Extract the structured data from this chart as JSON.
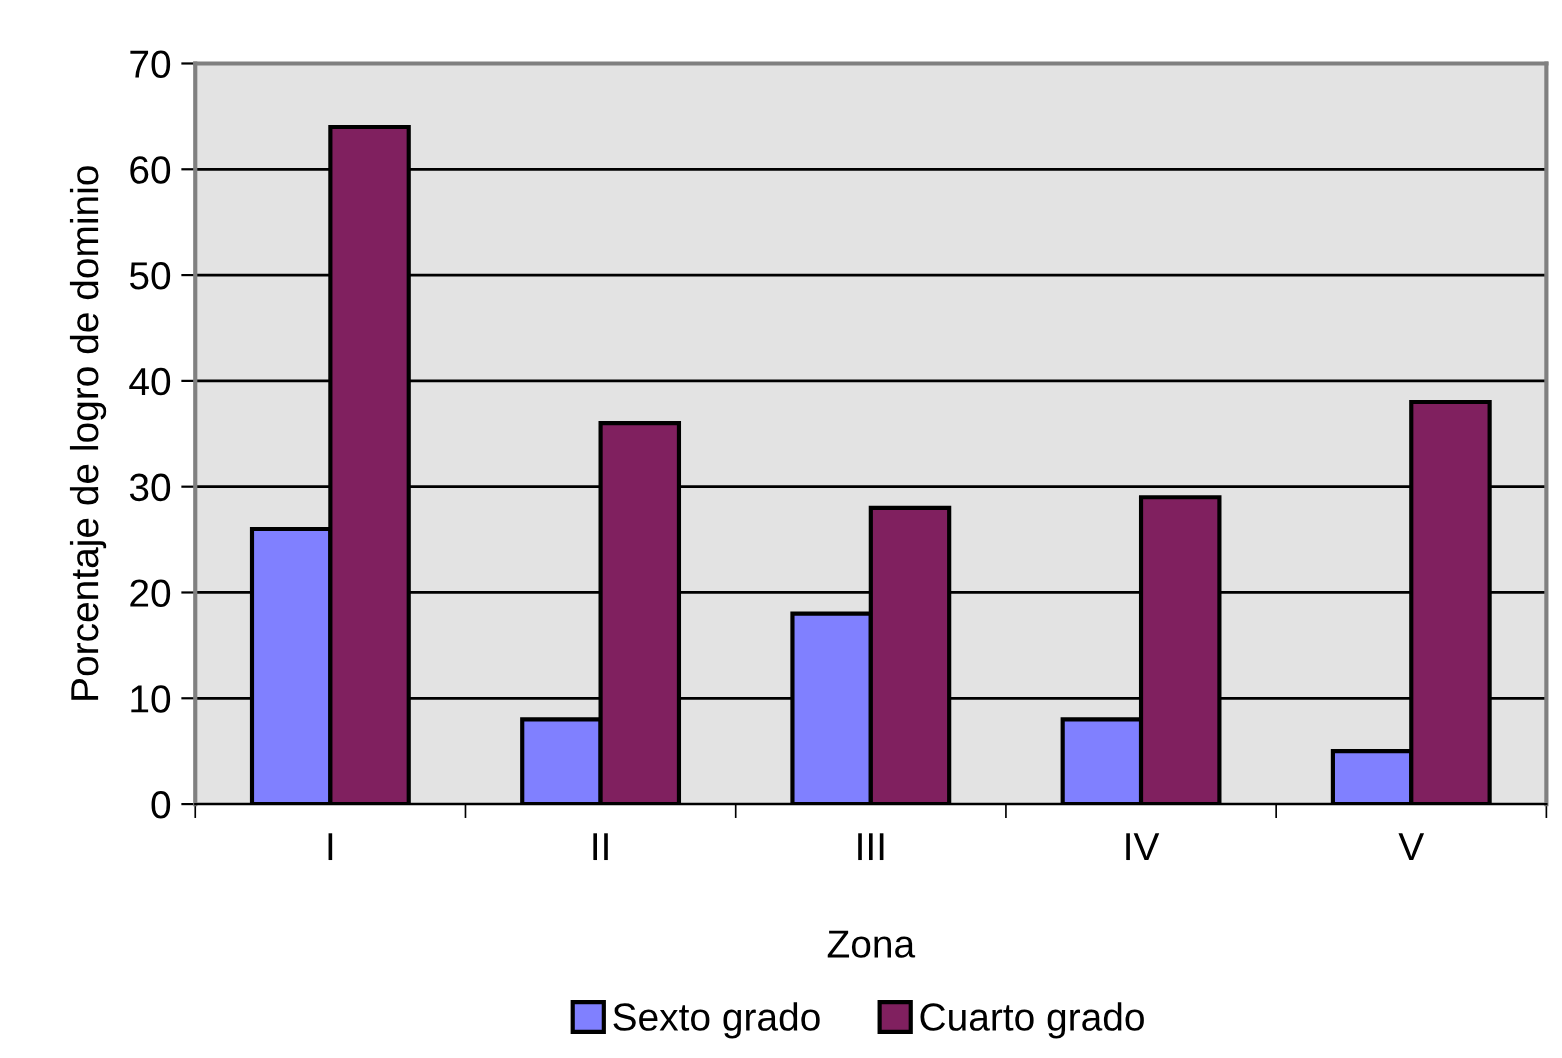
{
  "chart_data": {
    "type": "bar",
    "xlabel": "Zona",
    "ylabel": "Porcentaje de logro de dominio",
    "categories": [
      "I",
      "II",
      "III",
      "IV",
      "V"
    ],
    "series": [
      {
        "name": "Sexto grado",
        "color": "#8080ff",
        "values": [
          26,
          8,
          18,
          8,
          5
        ]
      },
      {
        "name": "Cuarto grado",
        "color": "#80205f",
        "values": [
          64,
          36,
          28,
          29,
          38
        ]
      }
    ],
    "ylim": [
      0,
      70
    ],
    "yticks": [
      0,
      10,
      20,
      30,
      40,
      50,
      60,
      70
    ],
    "grid": "y",
    "legend": "bottom"
  }
}
